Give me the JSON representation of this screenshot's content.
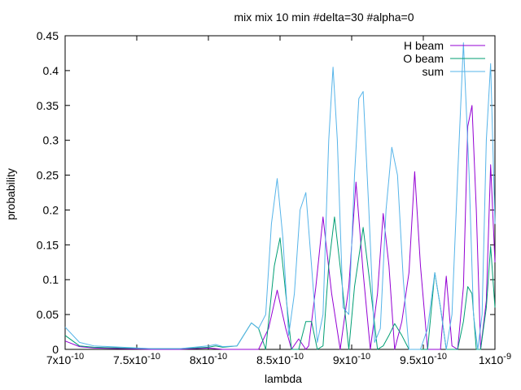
{
  "chart_data": {
    "type": "line",
    "title": "mix mix 10 min #delta=30 #alpha=0",
    "xlabel": "lambda",
    "ylabel": "probability",
    "xlim": [
      7e-10,
      1e-09
    ],
    "ylim": [
      0,
      0.45
    ],
    "grid": false,
    "legend_position": "top-right",
    "x_ticks": [
      {
        "value": 7e-10,
        "mantissa": "7",
        "exponent": "-10"
      },
      {
        "value": 7.5e-10,
        "mantissa": "7.5",
        "exponent": "-10"
      },
      {
        "value": 8e-10,
        "mantissa": "8",
        "exponent": "-10"
      },
      {
        "value": 8.5e-10,
        "mantissa": "8.5",
        "exponent": "-10"
      },
      {
        "value": 9e-10,
        "mantissa": "9",
        "exponent": "-10"
      },
      {
        "value": 9.5e-10,
        "mantissa": "9.5",
        "exponent": "-10"
      },
      {
        "value": 1e-09,
        "mantissa": "1",
        "exponent": "-9"
      }
    ],
    "y_ticks": [
      {
        "value": 0,
        "label": "0"
      },
      {
        "value": 0.05,
        "label": "0.05"
      },
      {
        "value": 0.1,
        "label": "0.1"
      },
      {
        "value": 0.15,
        "label": "0.15"
      },
      {
        "value": 0.2,
        "label": "0.2"
      },
      {
        "value": 0.25,
        "label": "0.25"
      },
      {
        "value": 0.3,
        "label": "0.3"
      },
      {
        "value": 0.35,
        "label": "0.35"
      },
      {
        "value": 0.4,
        "label": "0.4"
      },
      {
        "value": 0.45,
        "label": "0.45"
      }
    ],
    "series": [
      {
        "name": "H beam",
        "color": "#9400d3",
        "x": [
          7e-10,
          7.1e-10,
          7.2e-10,
          7.4e-10,
          7.6e-10,
          7.8e-10,
          8e-10,
          8.1e-10,
          8.2e-10,
          8.3e-10,
          8.35e-10,
          8.42e-10,
          8.48e-10,
          8.54e-10,
          8.58e-10,
          8.63e-10,
          8.68e-10,
          8.7e-10,
          8.75e-10,
          8.8e-10,
          8.86e-10,
          8.92e-10,
          8.98e-10,
          9.03e-10,
          9.08e-10,
          9.13e-10,
          9.18e-10,
          9.22e-10,
          9.26e-10,
          9.3e-10,
          9.35e-10,
          9.4e-10,
          9.44e-10,
          9.48e-10,
          9.53e-10,
          9.58e-10,
          9.62e-10,
          9.66e-10,
          9.7e-10,
          9.74e-10,
          9.78e-10,
          9.81e-10,
          9.84e-10,
          9.87e-10,
          9.9e-10,
          9.94e-10,
          9.97e-10,
          1e-09
        ],
        "y": [
          0.012,
          0.004,
          0.002,
          0.001,
          0.0,
          0.0,
          0.002,
          0.0,
          0.0,
          0.0,
          0.0,
          0.03,
          0.085,
          0.03,
          0.0,
          0.015,
          0.0,
          0.005,
          0.09,
          0.19,
          0.08,
          0.0,
          0.09,
          0.24,
          0.11,
          0.0,
          0.08,
          0.195,
          0.12,
          0.0,
          0.04,
          0.11,
          0.255,
          0.12,
          0.0,
          0.0,
          0.0,
          0.105,
          0.005,
          0.0,
          0.09,
          0.32,
          0.35,
          0.2,
          0.0,
          0.07,
          0.265,
          0.125
        ]
      },
      {
        "name": "O beam",
        "color": "#009e73",
        "x": [
          7e-10,
          7.1e-10,
          7.2e-10,
          7.4e-10,
          7.6e-10,
          7.8e-10,
          8e-10,
          8.05e-10,
          8.1e-10,
          8.2e-10,
          8.3e-10,
          8.35e-10,
          8.4e-10,
          8.46e-10,
          8.5e-10,
          8.54e-10,
          8.58e-10,
          8.63e-10,
          8.68e-10,
          8.72e-10,
          8.76e-10,
          8.8e-10,
          8.84e-10,
          8.88e-10,
          8.93e-10,
          8.98e-10,
          9.02e-10,
          9.08e-10,
          9.13e-10,
          9.18e-10,
          9.22e-10,
          9.26e-10,
          9.3e-10,
          9.35e-10,
          9.4e-10,
          9.44e-10,
          9.48e-10,
          9.53e-10,
          9.58e-10,
          9.62e-10,
          9.66e-10,
          9.7e-10,
          9.74e-10,
          9.78e-10,
          9.81e-10,
          9.84e-10,
          9.87e-10,
          9.9e-10,
          9.94e-10,
          9.97e-10,
          1e-09
        ],
        "y": [
          0.02,
          0.005,
          0.003,
          0.002,
          0.001,
          0.001,
          0.003,
          0.005,
          0.003,
          0.005,
          0.038,
          0.03,
          0.0,
          0.12,
          0.16,
          0.08,
          0.0,
          0.0,
          0.04,
          0.04,
          0.0,
          0.005,
          0.12,
          0.19,
          0.1,
          0.0,
          0.09,
          0.175,
          0.09,
          0.0,
          0.005,
          0.02,
          0.037,
          0.02,
          0.0,
          0.0,
          0.0,
          0.0,
          0.11,
          0.06,
          0.0,
          0.0,
          0.0,
          0.04,
          0.09,
          0.08,
          0.0,
          0.0,
          0.06,
          0.148,
          0.06
        ]
      },
      {
        "name": "sum",
        "color": "#56b4e9",
        "x": [
          7e-10,
          7.1e-10,
          7.2e-10,
          7.4e-10,
          7.6e-10,
          7.8e-10,
          8e-10,
          8.05e-10,
          8.1e-10,
          8.2e-10,
          8.3e-10,
          8.35e-10,
          8.4e-10,
          8.44e-10,
          8.48e-10,
          8.52e-10,
          8.56e-10,
          8.6e-10,
          8.64e-10,
          8.68e-10,
          8.72e-10,
          8.76e-10,
          8.8e-10,
          8.84e-10,
          8.87e-10,
          8.9e-10,
          8.94e-10,
          8.98e-10,
          9.02e-10,
          9.05e-10,
          9.08e-10,
          9.12e-10,
          9.16e-10,
          9.2e-10,
          9.24e-10,
          9.28e-10,
          9.32e-10,
          9.36e-10,
          9.4e-10,
          9.44e-10,
          9.48e-10,
          9.53e-10,
          9.58e-10,
          9.62e-10,
          9.66e-10,
          9.7e-10,
          9.74e-10,
          9.78e-10,
          9.82e-10,
          9.85e-10,
          9.88e-10,
          9.91e-10,
          9.94e-10,
          9.97e-10,
          1e-09
        ],
        "y": [
          0.032,
          0.01,
          0.005,
          0.003,
          0.001,
          0.001,
          0.005,
          0.007,
          0.004,
          0.005,
          0.038,
          0.03,
          0.05,
          0.18,
          0.245,
          0.16,
          0.02,
          0.08,
          0.2,
          0.225,
          0.12,
          0.01,
          0.05,
          0.3,
          0.405,
          0.3,
          0.06,
          0.05,
          0.25,
          0.36,
          0.37,
          0.2,
          0.01,
          0.03,
          0.2,
          0.29,
          0.25,
          0.1,
          0.0,
          0.0,
          0.0,
          0.03,
          0.11,
          0.06,
          0.0,
          0.05,
          0.25,
          0.44,
          0.25,
          0.05,
          0.0,
          0.05,
          0.3,
          0.41,
          0.18
        ]
      }
    ]
  }
}
